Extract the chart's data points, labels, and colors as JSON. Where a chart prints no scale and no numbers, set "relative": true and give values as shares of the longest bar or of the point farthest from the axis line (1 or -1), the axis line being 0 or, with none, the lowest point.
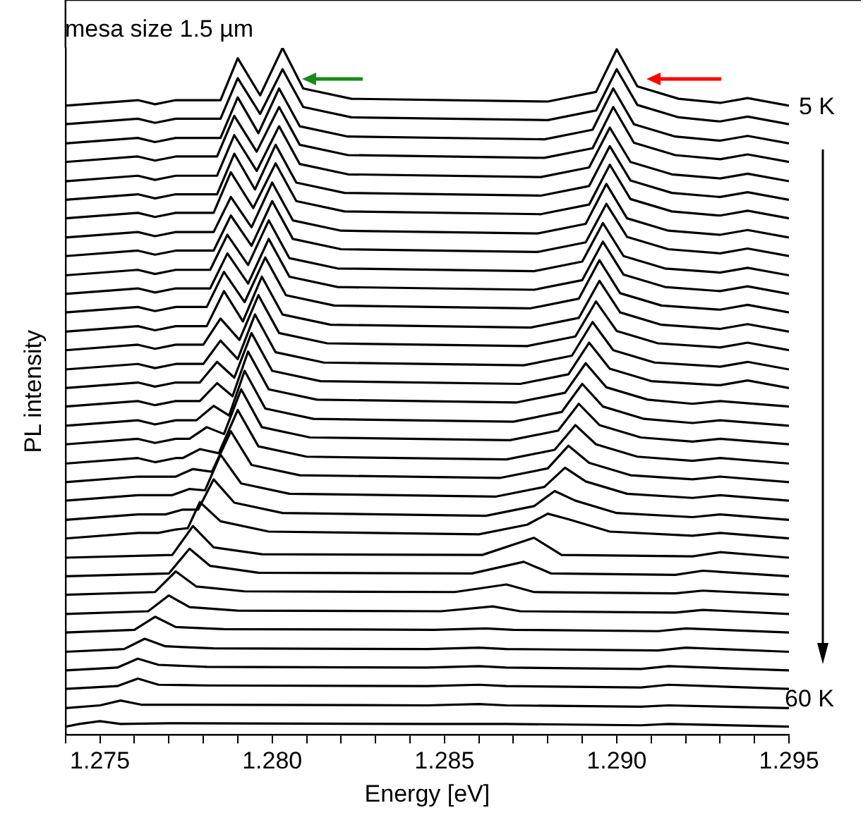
{
  "chart_data": {
    "type": "line",
    "relative": true,
    "xlabel": "Energy [eV]",
    "ylabel": "PL intensity",
    "marker": "none",
    "annotations": [
      "mesa size 1.5 µm",
      "5 K",
      "60 K"
    ],
    "xlim": [
      1.274,
      1.295
    ],
    "xticks": [
      {
        "value": 1.274,
        "label": null
      },
      1.275,
      {
        "value": 1.276,
        "label": null
      },
      {
        "value": 1.277,
        "label": null
      },
      {
        "value": 1.278,
        "label": null
      },
      {
        "value": 1.279,
        "label": null
      },
      {
        "value": 1.28,
        "label": "1.280"
      },
      {
        "value": 1.281,
        "label": null
      },
      {
        "value": 1.282,
        "label": null
      },
      {
        "value": 1.283,
        "label": null
      },
      {
        "value": 1.284,
        "label": null
      },
      1.285,
      {
        "value": 1.286,
        "label": null
      },
      {
        "value": 1.287,
        "label": null
      },
      {
        "value": 1.288,
        "label": null
      },
      {
        "value": 1.289,
        "label": null
      },
      {
        "value": 1.29,
        "label": "1.290"
      },
      {
        "value": 1.291,
        "label": null
      },
      {
        "value": 1.292,
        "label": null
      },
      {
        "value": 1.293,
        "label": null
      },
      {
        "value": 1.294,
        "label": null
      },
      1.295
    ],
    "series": [
      {
        "color": "#000000",
        "x": [
          1.274,
          1.2761,
          1.2766,
          1.2772,
          1.2785,
          1.279,
          1.27965,
          1.2803,
          1.2809,
          1.2823,
          1.288,
          1.2894,
          1.29,
          1.2906,
          1.2918,
          1.293,
          1.2938,
          1.295
        ],
        "values": [
          0.916,
          0.924,
          0.918,
          0.924,
          0.924,
          0.985,
          0.931,
          1.0,
          0.941,
          0.926,
          0.922,
          0.936,
          0.998,
          0.944,
          0.926,
          0.92,
          0.927,
          0.916
        ]
      },
      {
        "color": "#000000",
        "x": [
          1.274,
          1.2761,
          1.2766,
          1.2772,
          1.2785,
          1.279,
          1.27965,
          1.2803,
          1.2809,
          1.2823,
          1.288,
          1.2894,
          1.29,
          1.2906,
          1.2918,
          1.293,
          1.2938,
          1.295
        ],
        "values": [
          0.889,
          0.897,
          0.891,
          0.897,
          0.897,
          0.956,
          0.904,
          0.969,
          0.914,
          0.899,
          0.895,
          0.909,
          0.969,
          0.917,
          0.899,
          0.893,
          0.9,
          0.889
        ]
      },
      {
        "color": "#000000",
        "x": [
          1.274,
          1.2761,
          1.2766,
          1.2772,
          1.2785,
          1.279,
          1.2796,
          1.2802,
          1.2808,
          1.2822,
          1.2879,
          1.2893,
          1.2899,
          1.2905,
          1.2917,
          1.293,
          1.2938,
          1.295
        ],
        "values": [
          0.861,
          0.869,
          0.863,
          0.869,
          0.869,
          0.928,
          0.876,
          0.941,
          0.886,
          0.871,
          0.867,
          0.881,
          0.941,
          0.889,
          0.871,
          0.865,
          0.872,
          0.861
        ]
      },
      {
        "color": "#000000",
        "x": [
          1.274,
          1.2761,
          1.2766,
          1.2772,
          1.2784,
          1.2789,
          1.27955,
          1.2802,
          1.2808,
          1.2822,
          1.2879,
          1.2893,
          1.2899,
          1.2905,
          1.2917,
          1.293,
          1.2938,
          1.295
        ],
        "values": [
          0.834,
          0.842,
          0.836,
          0.842,
          0.842,
          0.901,
          0.849,
          0.914,
          0.859,
          0.844,
          0.84,
          0.854,
          0.914,
          0.862,
          0.844,
          0.838,
          0.845,
          0.834
        ]
      },
      {
        "color": "#000000",
        "x": [
          1.274,
          1.2761,
          1.2766,
          1.2772,
          1.2784,
          1.2789,
          1.27955,
          1.2802,
          1.2808,
          1.2822,
          1.2878,
          1.2892,
          1.2898,
          1.2904,
          1.2916,
          1.293,
          1.2938,
          1.295
        ],
        "values": [
          0.806,
          0.814,
          0.808,
          0.814,
          0.814,
          0.873,
          0.821,
          0.886,
          0.831,
          0.816,
          0.812,
          0.826,
          0.884,
          0.834,
          0.816,
          0.81,
          0.817,
          0.806
        ]
      },
      {
        "color": "#000000",
        "x": [
          1.274,
          1.2761,
          1.2766,
          1.2772,
          1.2784,
          1.2789,
          1.2795,
          1.2801,
          1.2807,
          1.2821,
          1.2878,
          1.2892,
          1.2898,
          1.2904,
          1.2916,
          1.293,
          1.2938,
          1.295
        ],
        "values": [
          0.779,
          0.787,
          0.781,
          0.787,
          0.787,
          0.846,
          0.794,
          0.859,
          0.804,
          0.789,
          0.785,
          0.799,
          0.857,
          0.807,
          0.789,
          0.783,
          0.79,
          0.779
        ]
      },
      {
        "color": "#000000",
        "x": [
          1.274,
          1.2761,
          1.2766,
          1.2772,
          1.2783,
          1.2788,
          1.27945,
          1.2801,
          1.2807,
          1.2821,
          1.2878,
          1.2892,
          1.2898,
          1.2904,
          1.2916,
          1.293,
          1.2938,
          1.295
        ],
        "values": [
          0.752,
          0.76,
          0.754,
          0.76,
          0.76,
          0.819,
          0.767,
          0.832,
          0.777,
          0.762,
          0.758,
          0.772,
          0.83,
          0.78,
          0.762,
          0.756,
          0.763,
          0.752
        ]
      },
      {
        "color": "#000000",
        "x": [
          1.274,
          1.2761,
          1.2766,
          1.2772,
          1.2783,
          1.2788,
          1.2794,
          1.28,
          1.2806,
          1.282,
          1.2877,
          1.2891,
          1.2897,
          1.2903,
          1.2915,
          1.293,
          1.2938,
          1.295
        ],
        "values": [
          0.724,
          0.732,
          0.726,
          0.732,
          0.732,
          0.783,
          0.739,
          0.804,
          0.749,
          0.734,
          0.73,
          0.744,
          0.802,
          0.752,
          0.734,
          0.728,
          0.735,
          0.724
        ]
      },
      {
        "color": "#000000",
        "x": [
          1.274,
          1.2761,
          1.2766,
          1.2772,
          1.2783,
          1.2788,
          1.2794,
          1.28,
          1.2806,
          1.282,
          1.2877,
          1.2891,
          1.2897,
          1.2903,
          1.2915,
          1.293,
          1.2938,
          1.295
        ],
        "values": [
          0.697,
          0.705,
          0.699,
          0.705,
          0.705,
          0.756,
          0.712,
          0.777,
          0.722,
          0.707,
          0.703,
          0.717,
          0.773,
          0.725,
          0.707,
          0.701,
          0.708,
          0.697
        ]
      },
      {
        "color": "#000000",
        "x": [
          1.274,
          1.2761,
          1.2766,
          1.2772,
          1.2782,
          1.2787,
          1.2793,
          1.2799,
          1.2805,
          1.2819,
          1.2876,
          1.289,
          1.2896,
          1.2902,
          1.2914,
          1.293,
          1.2938,
          1.295
        ],
        "values": [
          0.669,
          0.677,
          0.671,
          0.677,
          0.677,
          0.728,
          0.684,
          0.749,
          0.694,
          0.679,
          0.675,
          0.689,
          0.745,
          0.697,
          0.679,
          0.673,
          0.68,
          0.669
        ]
      },
      {
        "color": "#000000",
        "x": [
          1.274,
          1.2761,
          1.2766,
          1.2772,
          1.2782,
          1.2787,
          1.2793,
          1.2799,
          1.2805,
          1.2819,
          1.2876,
          1.289,
          1.2896,
          1.2902,
          1.2914,
          1.293,
          1.2938,
          1.295
        ],
        "values": [
          0.642,
          0.65,
          0.644,
          0.65,
          0.65,
          0.701,
          0.657,
          0.722,
          0.667,
          0.652,
          0.648,
          0.662,
          0.718,
          0.67,
          0.652,
          0.646,
          0.653,
          0.642
        ]
      },
      {
        "color": "#000000",
        "x": [
          1.274,
          1.2761,
          1.2766,
          1.2772,
          1.2781,
          1.2786,
          1.2792,
          1.2798,
          1.2804,
          1.2818,
          1.2875,
          1.2889,
          1.2895,
          1.2901,
          1.2913,
          1.293,
          1.2938,
          1.295
        ],
        "values": [
          0.615,
          0.623,
          0.617,
          0.623,
          0.623,
          0.674,
          0.63,
          0.695,
          0.64,
          0.625,
          0.621,
          0.635,
          0.691,
          0.643,
          0.625,
          0.619,
          0.626,
          0.615
        ]
      },
      {
        "color": "#000000",
        "x": [
          1.274,
          1.2761,
          1.2766,
          1.2772,
          1.2781,
          1.2786,
          1.27915,
          1.2797,
          1.2803,
          1.2817,
          1.2875,
          1.2889,
          1.2895,
          1.2901,
          1.2913,
          1.293,
          1.2938,
          1.295
        ],
        "values": [
          0.587,
          0.595,
          0.589,
          0.595,
          0.595,
          0.646,
          0.602,
          0.667,
          0.612,
          0.597,
          0.593,
          0.607,
          0.661,
          0.615,
          0.597,
          0.591,
          0.598,
          0.587
        ]
      },
      {
        "color": "#000000",
        "x": [
          1.274,
          1.2761,
          1.2766,
          1.2772,
          1.278,
          1.2785,
          1.27905,
          1.2796,
          1.2802,
          1.2816,
          1.2874,
          1.2888,
          1.2894,
          1.29,
          1.2912,
          1.293,
          1.2938,
          1.295
        ],
        "values": [
          0.56,
          0.568,
          0.562,
          0.568,
          0.568,
          0.606,
          0.575,
          0.64,
          0.585,
          0.57,
          0.566,
          0.58,
          0.631,
          0.588,
          0.57,
          0.564,
          0.571,
          0.56
        ]
      },
      {
        "color": "#000000",
        "x": [
          1.274,
          1.2761,
          1.2766,
          1.2772,
          1.278,
          1.2785,
          1.279,
          1.2795,
          1.2801,
          1.2815,
          1.2873,
          1.2887,
          1.2893,
          1.2899,
          1.2911,
          1.293,
          1.2938,
          1.295
        ],
        "values": [
          0.532,
          0.54,
          0.534,
          0.54,
          0.54,
          0.574,
          0.547,
          0.612,
          0.557,
          0.542,
          0.538,
          0.552,
          0.601,
          0.56,
          0.542,
          0.536,
          0.543,
          0.532
        ]
      },
      {
        "color": "#000000",
        "x": [
          1.274,
          1.2761,
          1.2766,
          1.2772,
          1.2779,
          1.2784,
          1.2789,
          1.2794,
          1.28,
          1.2814,
          1.2872,
          1.2886,
          1.2892,
          1.2898,
          1.291,
          1.293,
          1.2938,
          1.295
        ],
        "values": [
          0.505,
          0.513,
          0.507,
          0.513,
          0.513,
          0.543,
          0.52,
          0.585,
          0.53,
          0.515,
          0.511,
          0.525,
          0.571,
          0.533,
          0.515,
          0.509,
          0.516,
          0.505
        ]
      },
      {
        "color": "#000000",
        "x": [
          1.274,
          1.2761,
          1.2766,
          1.2772,
          1.2779,
          1.2784,
          1.27885,
          1.2793,
          1.2799,
          1.2813,
          1.2871,
          1.2885,
          1.2891,
          1.2897,
          1.2909,
          1.2922,
          1.293,
          1.295
        ],
        "values": [
          0.478,
          0.486,
          0.48,
          0.486,
          0.486,
          0.512,
          0.493,
          0.558,
          0.503,
          0.488,
          0.484,
          0.498,
          0.541,
          0.506,
          0.488,
          0.482,
          0.486,
          0.478
        ]
      },
      {
        "color": "#000000",
        "x": [
          1.274,
          1.2761,
          1.2766,
          1.2772,
          1.2778,
          1.2783,
          1.27875,
          1.2792,
          1.2798,
          1.2812,
          1.287,
          1.2884,
          1.289,
          1.2896,
          1.2908,
          1.2922,
          1.293,
          1.295
        ],
        "values": [
          0.45,
          0.458,
          0.452,
          0.458,
          0.458,
          0.479,
          0.465,
          0.53,
          0.475,
          0.46,
          0.456,
          0.47,
          0.511,
          0.478,
          0.46,
          0.454,
          0.458,
          0.45
        ]
      },
      {
        "color": "#000000",
        "x": [
          1.274,
          1.2761,
          1.2766,
          1.2772,
          1.2776,
          1.2781,
          1.2786,
          1.2791,
          1.2797,
          1.2811,
          1.2869,
          1.2883,
          1.2889,
          1.2895,
          1.2907,
          1.2922,
          1.293,
          1.295
        ],
        "values": [
          0.423,
          0.431,
          0.425,
          0.431,
          0.431,
          0.448,
          0.438,
          0.503,
          0.448,
          0.433,
          0.429,
          0.443,
          0.482,
          0.451,
          0.433,
          0.427,
          0.431,
          0.423
        ]
      },
      {
        "color": "#000000",
        "x": [
          1.274,
          1.2761,
          1.2766,
          1.2772,
          1.2774,
          1.2779,
          1.27845,
          1.279,
          1.2796,
          1.281,
          1.2868,
          1.2882,
          1.2888,
          1.2894,
          1.2906,
          1.2922,
          1.293,
          1.295
        ],
        "values": [
          0.395,
          0.403,
          0.397,
          0.403,
          0.403,
          0.416,
          0.41,
          0.473,
          0.42,
          0.405,
          0.401,
          0.415,
          0.451,
          0.423,
          0.405,
          0.399,
          0.403,
          0.395
        ]
      },
      {
        "color": "#000000",
        "x": [
          1.274,
          1.2761,
          1.2772,
          1.2777,
          1.27825,
          1.2788,
          1.2794,
          1.2808,
          1.2866,
          1.288,
          1.2886,
          1.2892,
          1.2904,
          1.2922,
          1.293,
          1.295
        ],
        "values": [
          0.368,
          0.376,
          0.376,
          0.387,
          0.383,
          0.442,
          0.393,
          0.378,
          0.374,
          0.388,
          0.421,
          0.396,
          0.378,
          0.372,
          0.376,
          0.368
        ]
      },
      {
        "color": "#000000",
        "x": [
          1.274,
          1.2761,
          1.2771,
          1.2776,
          1.27805,
          1.2785,
          1.2791,
          1.2805,
          1.2865,
          1.2879,
          1.2885,
          1.2891,
          1.2903,
          1.2922,
          1.293,
          1.295
        ],
        "values": [
          0.341,
          0.349,
          0.349,
          0.358,
          0.356,
          0.408,
          0.366,
          0.351,
          0.347,
          0.361,
          0.389,
          0.369,
          0.351,
          0.345,
          0.349,
          0.341
        ]
      },
      {
        "color": "#000000",
        "x": [
          1.274,
          1.2761,
          1.2769,
          1.2774,
          1.27785,
          1.2783,
          1.2789,
          1.2803,
          1.2862,
          1.2876,
          1.2882,
          1.2888,
          1.29,
          1.2922,
          1.293,
          1.295
        ],
        "values": [
          0.313,
          0.321,
          0.321,
          0.328,
          0.328,
          0.372,
          0.338,
          0.323,
          0.319,
          0.333,
          0.355,
          0.341,
          0.323,
          0.317,
          0.321,
          0.313
        ]
      },
      {
        "color": "#000000",
        "x": [
          1.274,
          1.2761,
          1.2767,
          1.2772,
          1.27755,
          1.2779,
          1.2785,
          1.2799,
          1.286,
          1.2874,
          1.288,
          1.2886,
          1.2898,
          1.2922,
          1.293,
          1.295
        ],
        "values": [
          0.286,
          0.294,
          0.294,
          0.299,
          0.301,
          0.339,
          0.311,
          0.296,
          0.292,
          0.306,
          0.322,
          0.314,
          0.296,
          0.29,
          0.294,
          0.286
        ]
      },
      {
        "color": "#000000",
        "x": [
          1.274,
          1.2771,
          1.2777,
          1.2783,
          1.2797,
          1.2861,
          1.2876,
          1.2884,
          1.2922,
          1.293,
          1.295
        ],
        "values": [
          0.258,
          0.262,
          0.304,
          0.273,
          0.263,
          0.262,
          0.287,
          0.262,
          0.26,
          0.266,
          0.258
        ]
      },
      {
        "color": "#000000",
        "x": [
          1.274,
          1.277,
          1.2776,
          1.2782,
          1.2796,
          1.2858,
          1.2873,
          1.2881,
          1.2917,
          1.2925,
          1.295
        ],
        "values": [
          0.231,
          0.235,
          0.271,
          0.246,
          0.236,
          0.235,
          0.252,
          0.235,
          0.233,
          0.239,
          0.231
        ]
      },
      {
        "color": "#000000",
        "x": [
          1.274,
          1.2766,
          1.2772,
          1.2778,
          1.2792,
          1.2853,
          1.2868,
          1.2876,
          1.2917,
          1.2925,
          1.295
        ],
        "values": [
          0.204,
          0.208,
          0.238,
          0.216,
          0.209,
          0.208,
          0.219,
          0.208,
          0.206,
          0.21,
          0.204
        ]
      },
      {
        "color": "#000000",
        "x": [
          1.274,
          1.2764,
          1.277,
          1.2776,
          1.279,
          1.2849,
          1.2864,
          1.2872,
          1.2917,
          1.2925,
          1.295
        ],
        "values": [
          0.176,
          0.18,
          0.203,
          0.186,
          0.181,
          0.18,
          0.187,
          0.18,
          0.178,
          0.182,
          0.176
        ]
      },
      {
        "color": "#000000",
        "x": [
          1.274,
          1.276,
          1.2766,
          1.2772,
          1.2786,
          1.2847,
          1.2862,
          1.287,
          1.2912,
          1.292,
          1.295
        ],
        "values": [
          0.149,
          0.153,
          0.172,
          0.157,
          0.154,
          0.153,
          0.155,
          0.153,
          0.151,
          0.155,
          0.149
        ]
      },
      {
        "color": "#000000",
        "x": [
          1.274,
          1.2757,
          1.2763,
          1.2769,
          1.2783,
          1.2845,
          1.286,
          1.2868,
          1.2912,
          1.292,
          1.295
        ],
        "values": [
          0.121,
          0.125,
          0.14,
          0.129,
          0.126,
          0.125,
          0.127,
          0.125,
          0.123,
          0.127,
          0.121
        ]
      },
      {
        "color": "#000000",
        "x": [
          1.274,
          1.2755,
          1.2761,
          1.2767,
          1.2781,
          1.2845,
          1.286,
          1.2868,
          1.2907,
          1.2915,
          1.295
        ],
        "values": [
          0.094,
          0.098,
          0.111,
          0.102,
          0.099,
          0.098,
          0.1,
          0.098,
          0.096,
          0.1,
          0.094
        ]
      },
      {
        "color": "#000000",
        "x": [
          1.274,
          1.2755,
          1.2761,
          1.2767,
          1.2781,
          1.2845,
          1.286,
          1.2868,
          1.2907,
          1.2915,
          1.295
        ],
        "values": [
          0.067,
          0.071,
          0.082,
          0.073,
          0.072,
          0.071,
          0.073,
          0.071,
          0.069,
          0.073,
          0.067
        ]
      },
      {
        "color": "#000000",
        "x": [
          1.274,
          1.275,
          1.2756,
          1.2762,
          1.2776,
          1.2845,
          1.286,
          1.2868,
          1.2907,
          1.2915,
          1.295
        ],
        "values": [
          0.039,
          0.043,
          0.05,
          0.044,
          0.044,
          0.043,
          0.045,
          0.043,
          0.041,
          0.043,
          0.039
        ]
      },
      {
        "color": "#000000",
        "x": [
          1.274,
          1.2744,
          1.275,
          1.2756,
          1.277,
          1.2845,
          1.286,
          1.2868,
          1.2907,
          1.2915,
          1.295
        ],
        "values": [
          0.012,
          0.016,
          0.02,
          0.016,
          0.017,
          0.016,
          0.016,
          0.016,
          0.014,
          0.016,
          0.012
        ]
      }
    ]
  }
}
